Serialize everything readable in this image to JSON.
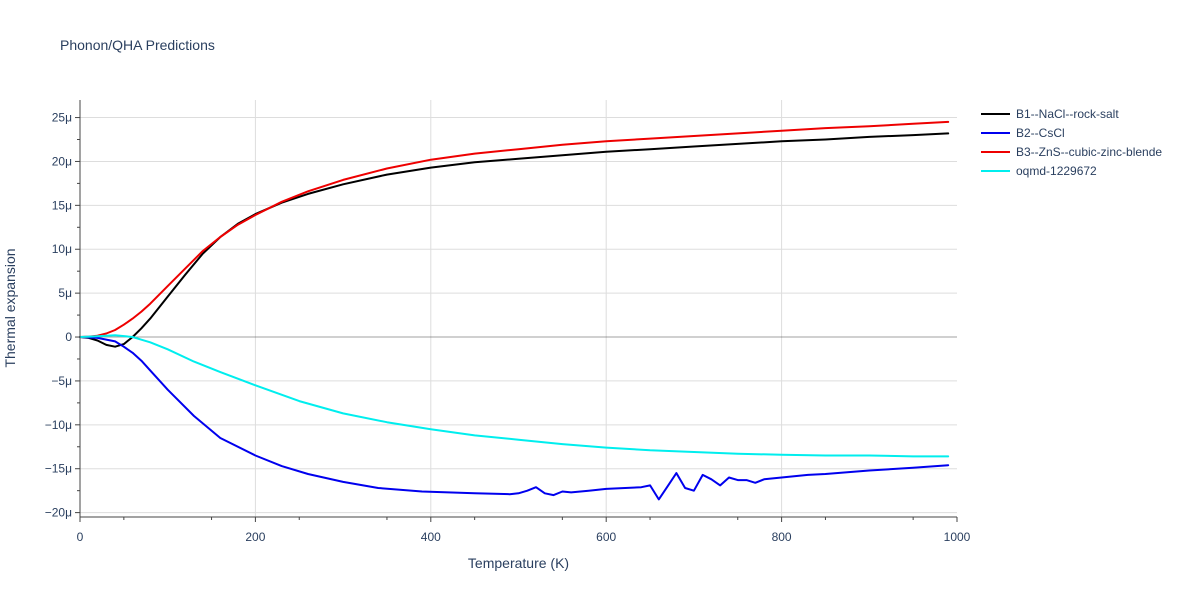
{
  "chart_data": {
    "type": "line",
    "title": "Phonon/QHA Predictions",
    "xlabel": "Temperature (K)",
    "ylabel": "Thermal expansion",
    "xlim": [
      0,
      1000
    ],
    "ylim": [
      -2.05e-05,
      2.7e-05
    ],
    "xticks": [
      0,
      200,
      400,
      600,
      800,
      1000
    ],
    "xtick_labels": [
      "0",
      "200",
      "400",
      "600",
      "800",
      "1000"
    ],
    "yticks": [
      -2e-05,
      -1.5e-05,
      -1e-05,
      -5e-06,
      0,
      5e-06,
      1e-05,
      1.5e-05,
      2e-05,
      2.5e-05
    ],
    "ytick_labels": [
      "−20μ",
      "−15μ",
      "−10μ",
      "−5μ",
      "0",
      "5μ",
      "10μ",
      "15μ",
      "20μ",
      "25μ"
    ],
    "grid": true,
    "legend_position": "top-right outside",
    "series": [
      {
        "name": "B1--NaCl--rock-salt",
        "color": "#000000",
        "x": [
          0,
          10,
          20,
          30,
          40,
          50,
          60,
          70,
          80,
          100,
          120,
          140,
          160,
          180,
          200,
          230,
          260,
          300,
          350,
          400,
          450,
          500,
          550,
          600,
          650,
          700,
          750,
          800,
          850,
          900,
          950,
          990
        ],
        "y": [
          0,
          -1e-07,
          -4e-07,
          -9e-07,
          -1.1e-06,
          -8e-07,
          0,
          1e-06,
          2.1e-06,
          4.6e-06,
          7.1e-06,
          9.5e-06,
          1.14e-05,
          1.29e-05,
          1.4e-05,
          1.53e-05,
          1.63e-05,
          1.74e-05,
          1.85e-05,
          1.93e-05,
          1.99e-05,
          2.03e-05,
          2.07e-05,
          2.11e-05,
          2.14e-05,
          2.17e-05,
          2.2e-05,
          2.23e-05,
          2.25e-05,
          2.28e-05,
          2.3e-05,
          2.32e-05
        ]
      },
      {
        "name": "B2--CsCl",
        "color": "#0000ee",
        "x": [
          0,
          20,
          40,
          50,
          60,
          70,
          80,
          100,
          130,
          160,
          200,
          230,
          260,
          300,
          340,
          390,
          450,
          490,
          500,
          510,
          520,
          530,
          540,
          550,
          560,
          580,
          600,
          640,
          650,
          660,
          670,
          680,
          690,
          700,
          710,
          720,
          730,
          740,
          750,
          760,
          770,
          780,
          800,
          820,
          830,
          850,
          900,
          950,
          990
        ],
        "y": [
          0,
          -1e-07,
          -5e-07,
          -1.1e-06,
          -1.8e-06,
          -2.7e-06,
          -3.8e-06,
          -6e-06,
          -9e-06,
          -1.15e-05,
          -1.35e-05,
          -1.47e-05,
          -1.56e-05,
          -1.65e-05,
          -1.72e-05,
          -1.76e-05,
          -1.78e-05,
          -1.79e-05,
          -1.78e-05,
          -1.75e-05,
          -1.71e-05,
          -1.78e-05,
          -1.8e-05,
          -1.76e-05,
          -1.77e-05,
          -1.75e-05,
          -1.73e-05,
          -1.71e-05,
          -1.69e-05,
          -1.85e-05,
          -1.7e-05,
          -1.55e-05,
          -1.72e-05,
          -1.75e-05,
          -1.57e-05,
          -1.62e-05,
          -1.69e-05,
          -1.6e-05,
          -1.63e-05,
          -1.63e-05,
          -1.66e-05,
          -1.62e-05,
          -1.6e-05,
          -1.58e-05,
          -1.57e-05,
          -1.56e-05,
          -1.52e-05,
          -1.49e-05,
          -1.46e-05
        ]
      },
      {
        "name": "B3--ZnS--cubic-zinc-blende",
        "color": "#ee0000",
        "x": [
          0,
          10,
          20,
          30,
          40,
          50,
          60,
          70,
          80,
          100,
          120,
          140,
          160,
          180,
          200,
          230,
          260,
          300,
          350,
          400,
          450,
          500,
          550,
          600,
          650,
          700,
          750,
          800,
          850,
          900,
          950,
          990
        ],
        "y": [
          0,
          5e-08,
          1.5e-07,
          4e-07,
          8e-07,
          1.4e-06,
          2.1e-06,
          2.9e-06,
          3.8e-06,
          5.8e-06,
          7.8e-06,
          9.8e-06,
          1.14e-05,
          1.28e-05,
          1.39e-05,
          1.54e-05,
          1.66e-05,
          1.79e-05,
          1.92e-05,
          2.02e-05,
          2.09e-05,
          2.14e-05,
          2.19e-05,
          2.23e-05,
          2.26e-05,
          2.29e-05,
          2.32e-05,
          2.35e-05,
          2.38e-05,
          2.4e-05,
          2.43e-05,
          2.45e-05
        ]
      },
      {
        "name": "oqmd-1229672",
        "color": "#00eeee",
        "x": [
          0,
          20,
          40,
          60,
          70,
          80,
          100,
          130,
          160,
          200,
          250,
          300,
          350,
          400,
          450,
          500,
          550,
          600,
          650,
          700,
          750,
          800,
          850,
          900,
          950,
          990
        ],
        "y": [
          0,
          1e-07,
          2e-07,
          0,
          -3e-07,
          -6e-07,
          -1.4e-06,
          -2.8e-06,
          -4e-06,
          -5.5e-06,
          -7.3e-06,
          -8.7e-06,
          -9.7e-06,
          -1.05e-05,
          -1.12e-05,
          -1.17e-05,
          -1.22e-05,
          -1.26e-05,
          -1.29e-05,
          -1.31e-05,
          -1.33e-05,
          -1.34e-05,
          -1.35e-05,
          -1.35e-05,
          -1.36e-05,
          -1.36e-05
        ]
      }
    ]
  }
}
